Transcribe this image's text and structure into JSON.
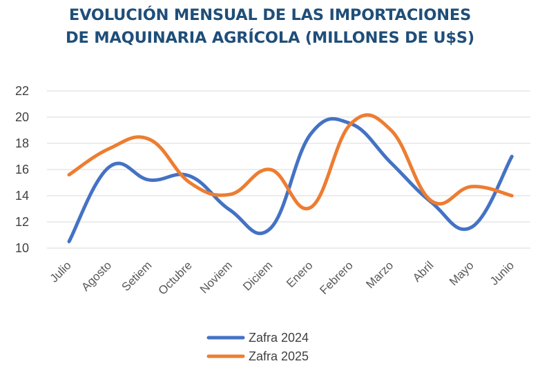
{
  "chart_data": {
    "type": "line",
    "title_line1": "EVOLUCIÓN MENSUAL DE LAS IMPORTACIONES",
    "title_line2": "DE MAQUINARIA AGRÍCOLA (MILLONES DE U$S)",
    "categories": [
      "Julio",
      "Agosto",
      "Setiem",
      "Octubre",
      "Noviem",
      "Diciem",
      "Enero",
      "Febrero",
      "Marzo",
      "Abril",
      "Mayo",
      "Junio"
    ],
    "series": [
      {
        "name": "Zafra 2024",
        "color": "#4472c4",
        "values": [
          10.5,
          16.2,
          15.2,
          15.5,
          12.9,
          11.5,
          18.7,
          19.5,
          16.5,
          13.5,
          11.6,
          17.0
        ]
      },
      {
        "name": "Zafra 2025",
        "color": "#ed7d31",
        "values": [
          15.6,
          17.6,
          18.3,
          15.0,
          14.1,
          16.0,
          13.1,
          19.5,
          19.0,
          13.6,
          14.7,
          14.0
        ]
      }
    ],
    "yticks": [
      10,
      12,
      14,
      16,
      18,
      20,
      22
    ],
    "ylim": [
      10,
      22
    ],
    "xlabel": "",
    "ylabel": "",
    "grid": true,
    "legend_position": "bottom"
  }
}
